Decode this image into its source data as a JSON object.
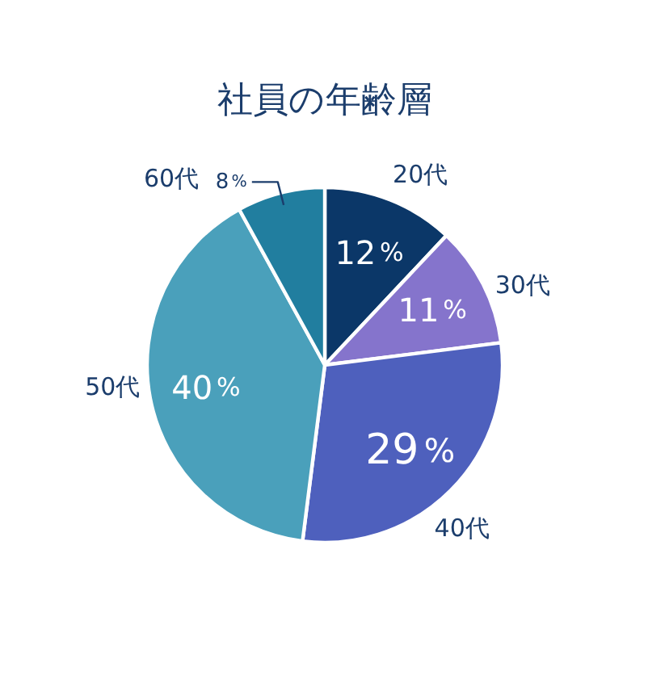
{
  "chart_data": {
    "type": "pie",
    "title": "社員の年齢層",
    "categories": [
      "20代",
      "30代",
      "40代",
      "50代",
      "60代"
    ],
    "values": [
      12,
      11,
      29,
      40,
      8
    ],
    "colors": [
      "#0b3768",
      "#8574cc",
      "#4e60bd",
      "#4aa0bb",
      "#217e9f"
    ],
    "value_labels": [
      "12%",
      "11%",
      "29%",
      "40%",
      "8%"
    ]
  }
}
